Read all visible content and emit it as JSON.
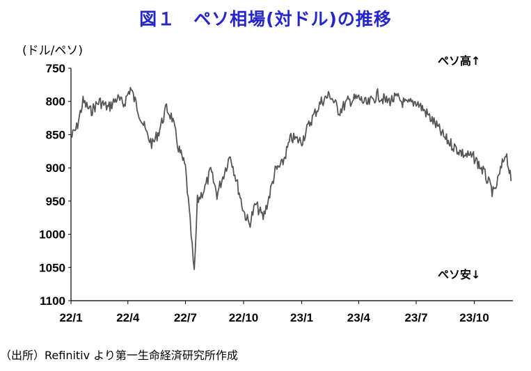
{
  "title": "図１　ペソ相場(対ドル)の推移",
  "unit_label": "(ドル/ペソ)",
  "annotation_high": "ペソ高↑",
  "annotation_low": "ペソ安↓",
  "source": "（出所）Refinitiv より第一生命経済研究所作成",
  "chart_data": {
    "type": "line",
    "title": "図１　ペソ相場(対ドル)の推移",
    "ylabel": "(ドル/ペソ)",
    "xlabel": "",
    "y_inverted": true,
    "ylim": [
      750,
      1100
    ],
    "yticks": [
      "750",
      "800",
      "850",
      "900",
      "950",
      "1000",
      "1050",
      "1100"
    ],
    "xticks": [
      "22/1",
      "22/4",
      "22/7",
      "22/10",
      "23/1",
      "23/4",
      "23/7",
      "23/10"
    ],
    "grid": false,
    "series": [
      {
        "name": "",
        "color": "#555555",
        "x": [
          "2022-01-01",
          "2022-01-10",
          "2022-01-20",
          "2022-02-01",
          "2022-02-15",
          "2022-03-01",
          "2022-03-15",
          "2022-03-25",
          "2022-04-05",
          "2022-04-20",
          "2022-05-01",
          "2022-05-10",
          "2022-05-20",
          "2022-06-01",
          "2022-06-10",
          "2022-06-20",
          "2022-07-01",
          "2022-07-10",
          "2022-07-15",
          "2022-07-20",
          "2022-08-01",
          "2022-08-10",
          "2022-08-20",
          "2022-09-01",
          "2022-09-10",
          "2022-09-20",
          "2022-10-01",
          "2022-10-10",
          "2022-10-20",
          "2022-11-01",
          "2022-11-10",
          "2022-11-20",
          "2022-12-01",
          "2022-12-15",
          "2023-01-01",
          "2023-01-15",
          "2023-02-01",
          "2023-02-15",
          "2023-03-01",
          "2023-03-15",
          "2023-04-01",
          "2023-04-15",
          "2023-05-01",
          "2023-05-15",
          "2023-06-01",
          "2023-06-15",
          "2023-07-01",
          "2023-07-15",
          "2023-08-01",
          "2023-08-15",
          "2023-09-01",
          "2023-09-15",
          "2023-10-01",
          "2023-10-15",
          "2023-11-01",
          "2023-11-10",
          "2023-11-20",
          "2023-11-28"
        ],
        "values": [
          855,
          840,
          800,
          815,
          800,
          810,
          795,
          805,
          780,
          820,
          850,
          865,
          845,
          810,
          825,
          870,
          900,
          1000,
          1060,
          950,
          930,
          905,
          940,
          905,
          880,
          920,
          965,
          985,
          955,
          975,
          945,
          905,
          895,
          855,
          860,
          830,
          800,
          790,
          815,
          800,
          795,
          805,
          790,
          800,
          795,
          805,
          800,
          815,
          835,
          855,
          870,
          880,
          885,
          905,
          940,
          910,
          875,
          920
        ]
      }
    ]
  }
}
